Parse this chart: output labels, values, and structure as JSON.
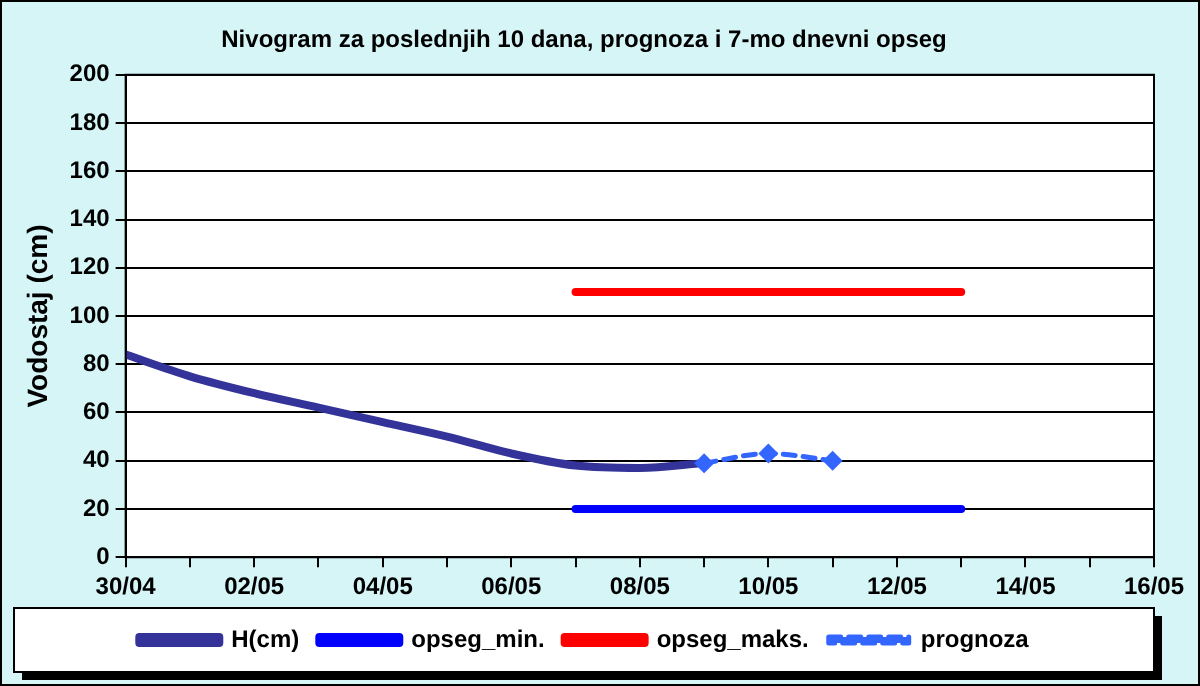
{
  "chart_data": {
    "type": "line",
    "title": "Nivogram za poslednjih 10 dana, prognoza i 7-mo dnevni opseg",
    "ylabel": "Vodostaj (cm)",
    "series": [
      {
        "name": "H(cm)",
        "color": "#333399",
        "x": [
          "--04-30",
          "--05-01",
          "--05-02",
          "--05-03",
          "--05-04",
          "--05-05",
          "--05-06",
          "--05-07",
          "--05-08",
          "--05-09"
        ],
        "values": [
          84,
          75,
          68,
          62,
          56,
          50,
          43,
          38,
          37,
          39
        ],
        "marker": "none",
        "line_style": "solid"
      },
      {
        "name": "opseg_min.",
        "color": "#0000ff",
        "x": [
          "--05-07",
          "--05-13"
        ],
        "values": [
          20,
          20
        ],
        "marker": "none",
        "line_style": "solid"
      },
      {
        "name": "opseg_maks.",
        "color": "#ff0000",
        "x": [
          "--05-07",
          "--05-13"
        ],
        "values": [
          110,
          110
        ],
        "marker": "none",
        "line_style": "solid"
      },
      {
        "name": "prognoza",
        "color": "#3366ff",
        "x": [
          "--05-09",
          "--05-10",
          "--05-11"
        ],
        "values": [
          39,
          43,
          40
        ],
        "marker": "diamond",
        "line_style": "dashed"
      }
    ],
    "xlim": [
      "--04-30",
      "--05-16"
    ],
    "xticks": [
      {
        "value": "--04-30",
        "label": "30/04"
      },
      {
        "value": "--05-01",
        "label": null
      },
      {
        "value": "--05-02",
        "label": "02/05"
      },
      {
        "value": "--05-03",
        "label": null
      },
      {
        "value": "--05-04",
        "label": "04/05"
      },
      {
        "value": "--05-05",
        "label": null
      },
      {
        "value": "--05-06",
        "label": "06/05"
      },
      {
        "value": "--05-07",
        "label": null
      },
      {
        "value": "--05-08",
        "label": "08/05"
      },
      {
        "value": "--05-09",
        "label": null
      },
      {
        "value": "--05-10",
        "label": "10/05"
      },
      {
        "value": "--05-11",
        "label": null
      },
      {
        "value": "--05-12",
        "label": "12/05"
      },
      {
        "value": "--05-13",
        "label": null
      },
      {
        "value": "--05-14",
        "label": "14/05"
      },
      {
        "value": "--05-15",
        "label": null
      },
      {
        "value": "--05-16",
        "label": "16/05"
      }
    ],
    "ylim": [
      0,
      200
    ],
    "yticks": [
      0,
      20,
      40,
      60,
      80,
      100,
      120,
      140,
      160,
      180,
      200
    ],
    "grid": "y",
    "legend": "bottom"
  }
}
